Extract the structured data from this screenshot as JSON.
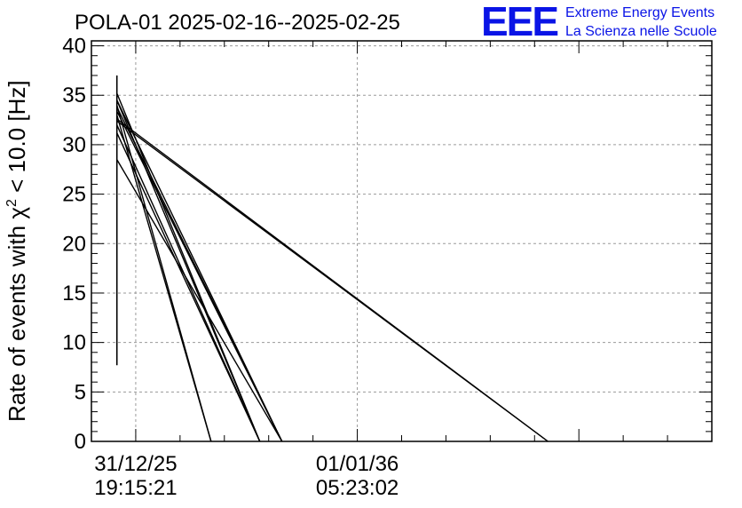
{
  "header": {
    "title": "POLA-01 2025-02-16--2025-02-25",
    "logo_text": "EEE",
    "brand_line1": "Extreme Energy Events",
    "brand_line2": "La Scienza nelle Scuole"
  },
  "chart_data": {
    "type": "line",
    "title": "POLA-01 2025-02-16--2025-02-25",
    "ylabel_prefix": "Rate of events with χ",
    "ylabel_sup": "2",
    "ylabel_suffix": " < 10.0 [Hz]",
    "ylim": [
      0,
      40.5
    ],
    "xlim": [
      -0.2,
      2.6
    ],
    "yticks": [
      0,
      5,
      10,
      15,
      20,
      25,
      30,
      35,
      40
    ],
    "xticks": [
      {
        "x": 0,
        "date": "31/12/25",
        "time": "19:15:21"
      },
      {
        "x": 1,
        "date": "01/01/36",
        "time": "05:23:02"
      }
    ],
    "grid": true,
    "colors": {
      "series": "#000000",
      "logo": "#0a14e6"
    },
    "vertical_segment": {
      "x": -0.085,
      "y": [
        7.7,
        37.0
      ]
    },
    "series": [
      {
        "x": [
          -0.085,
          1.86
        ],
        "y": [
          32.4,
          0
        ]
      },
      {
        "x": [
          -0.085,
          1.86
        ],
        "y": [
          32.6,
          0
        ]
      },
      {
        "x": [
          -0.085,
          0.66
        ],
        "y": [
          34.5,
          0
        ]
      },
      {
        "x": [
          -0.085,
          0.66
        ],
        "y": [
          33.8,
          0
        ]
      },
      {
        "x": [
          -0.085,
          0.66
        ],
        "y": [
          33.4,
          0
        ]
      },
      {
        "x": [
          -0.085,
          0.56
        ],
        "y": [
          35.2,
          0
        ]
      },
      {
        "x": [
          -0.085,
          0.56
        ],
        "y": [
          34.5,
          0
        ]
      },
      {
        "x": [
          -0.085,
          0.56
        ],
        "y": [
          32.0,
          0
        ]
      },
      {
        "x": [
          -0.085,
          0.56
        ],
        "y": [
          31.2,
          0
        ]
      },
      {
        "x": [
          -0.085,
          0.34
        ],
        "y": [
          34.0,
          0
        ]
      },
      {
        "x": [
          -0.085,
          0.34
        ],
        "y": [
          33.0,
          0
        ]
      },
      {
        "x": [
          -0.085,
          0.66
        ],
        "y": [
          28.5,
          0
        ]
      }
    ]
  }
}
